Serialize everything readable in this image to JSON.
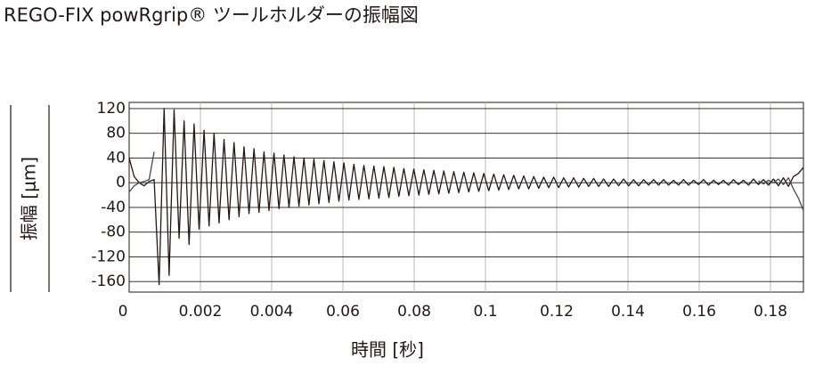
{
  "chart_data": {
    "type": "line",
    "title": "REGO-FIX powRgrip® ツールホルダーの振幅図",
    "y_label": "振幅 [μm]",
    "x_label": "時間 [秒]",
    "xtick_labels": [
      "0",
      "0.002",
      "0.004",
      "0.06",
      "0.08",
      "0.1",
      "0.12",
      "0.14",
      "0.16",
      "0.18"
    ],
    "ylim": [
      -177,
      130
    ],
    "yticks": [
      120,
      80,
      40,
      0,
      -40,
      -80,
      -120,
      -160
    ],
    "grid": true,
    "series": [
      {
        "color": "#231815",
        "values": [
          40,
          10,
          0,
          -5,
          2,
          5,
          -165,
          120,
          -150,
          118,
          -90,
          100,
          -100,
          95,
          -75,
          85,
          -70,
          80,
          -65,
          70,
          -60,
          65,
          -55,
          58,
          -50,
          55,
          -48,
          50,
          -45,
          48,
          -42,
          45,
          -40,
          42,
          -38,
          40,
          -36,
          38,
          -34,
          36,
          -32,
          34,
          -30,
          32,
          -28,
          30,
          -27,
          28,
          -26,
          27,
          -25,
          26,
          -24,
          25,
          -22,
          23,
          -21,
          22,
          -20,
          21,
          -19,
          20,
          -18,
          19,
          -17,
          18,
          -16,
          17,
          -15,
          16,
          -14,
          15,
          -13,
          14,
          -12,
          13,
          -11,
          12,
          -10,
          11,
          -10,
          10,
          -9,
          9,
          -8,
          9,
          -8,
          8,
          -7,
          8,
          -7,
          7,
          -6,
          7,
          -6,
          6,
          -6,
          6,
          -5,
          6,
          -5,
          5,
          -5,
          5,
          -4,
          5,
          -4,
          5,
          -4,
          4,
          -4,
          5,
          -4,
          4,
          -3,
          5,
          -4,
          4,
          -3,
          4,
          -4,
          5,
          -3,
          4,
          -4,
          6,
          -3,
          5,
          -4,
          6,
          -5,
          8,
          -6,
          10,
          15,
          25
        ]
      },
      {
        "color": "#4a4a4a",
        "values": [
          -15,
          -5,
          0,
          2,
          5,
          50,
          null,
          null,
          null,
          null,
          null,
          null,
          null,
          null,
          null,
          null,
          null,
          null,
          null,
          null,
          null,
          null,
          null,
          null,
          null,
          null,
          null,
          null,
          null,
          null,
          null,
          null,
          null,
          null,
          null,
          null,
          null,
          null,
          null,
          null,
          null,
          null,
          null,
          null,
          null,
          null,
          null,
          null,
          null,
          null,
          null,
          null,
          null,
          null,
          null,
          null,
          null,
          null,
          null,
          null,
          null,
          null,
          null,
          null,
          null,
          null,
          null,
          null,
          null,
          null,
          null,
          null,
          null,
          null,
          null,
          null,
          null,
          null,
          null,
          null,
          null,
          null,
          null,
          null,
          null,
          null,
          null,
          null,
          null,
          null,
          null,
          null,
          null,
          null,
          null,
          null,
          null,
          null,
          null,
          null,
          null,
          null,
          null,
          null,
          null,
          null,
          null,
          null,
          null,
          null,
          null,
          null,
          null,
          null,
          null,
          null,
          null,
          null,
          null,
          null,
          null,
          null,
          null,
          null,
          null,
          null,
          3,
          -2,
          4,
          0,
          6,
          -3,
          8,
          -10,
          -25,
          -45
        ]
      }
    ]
  }
}
